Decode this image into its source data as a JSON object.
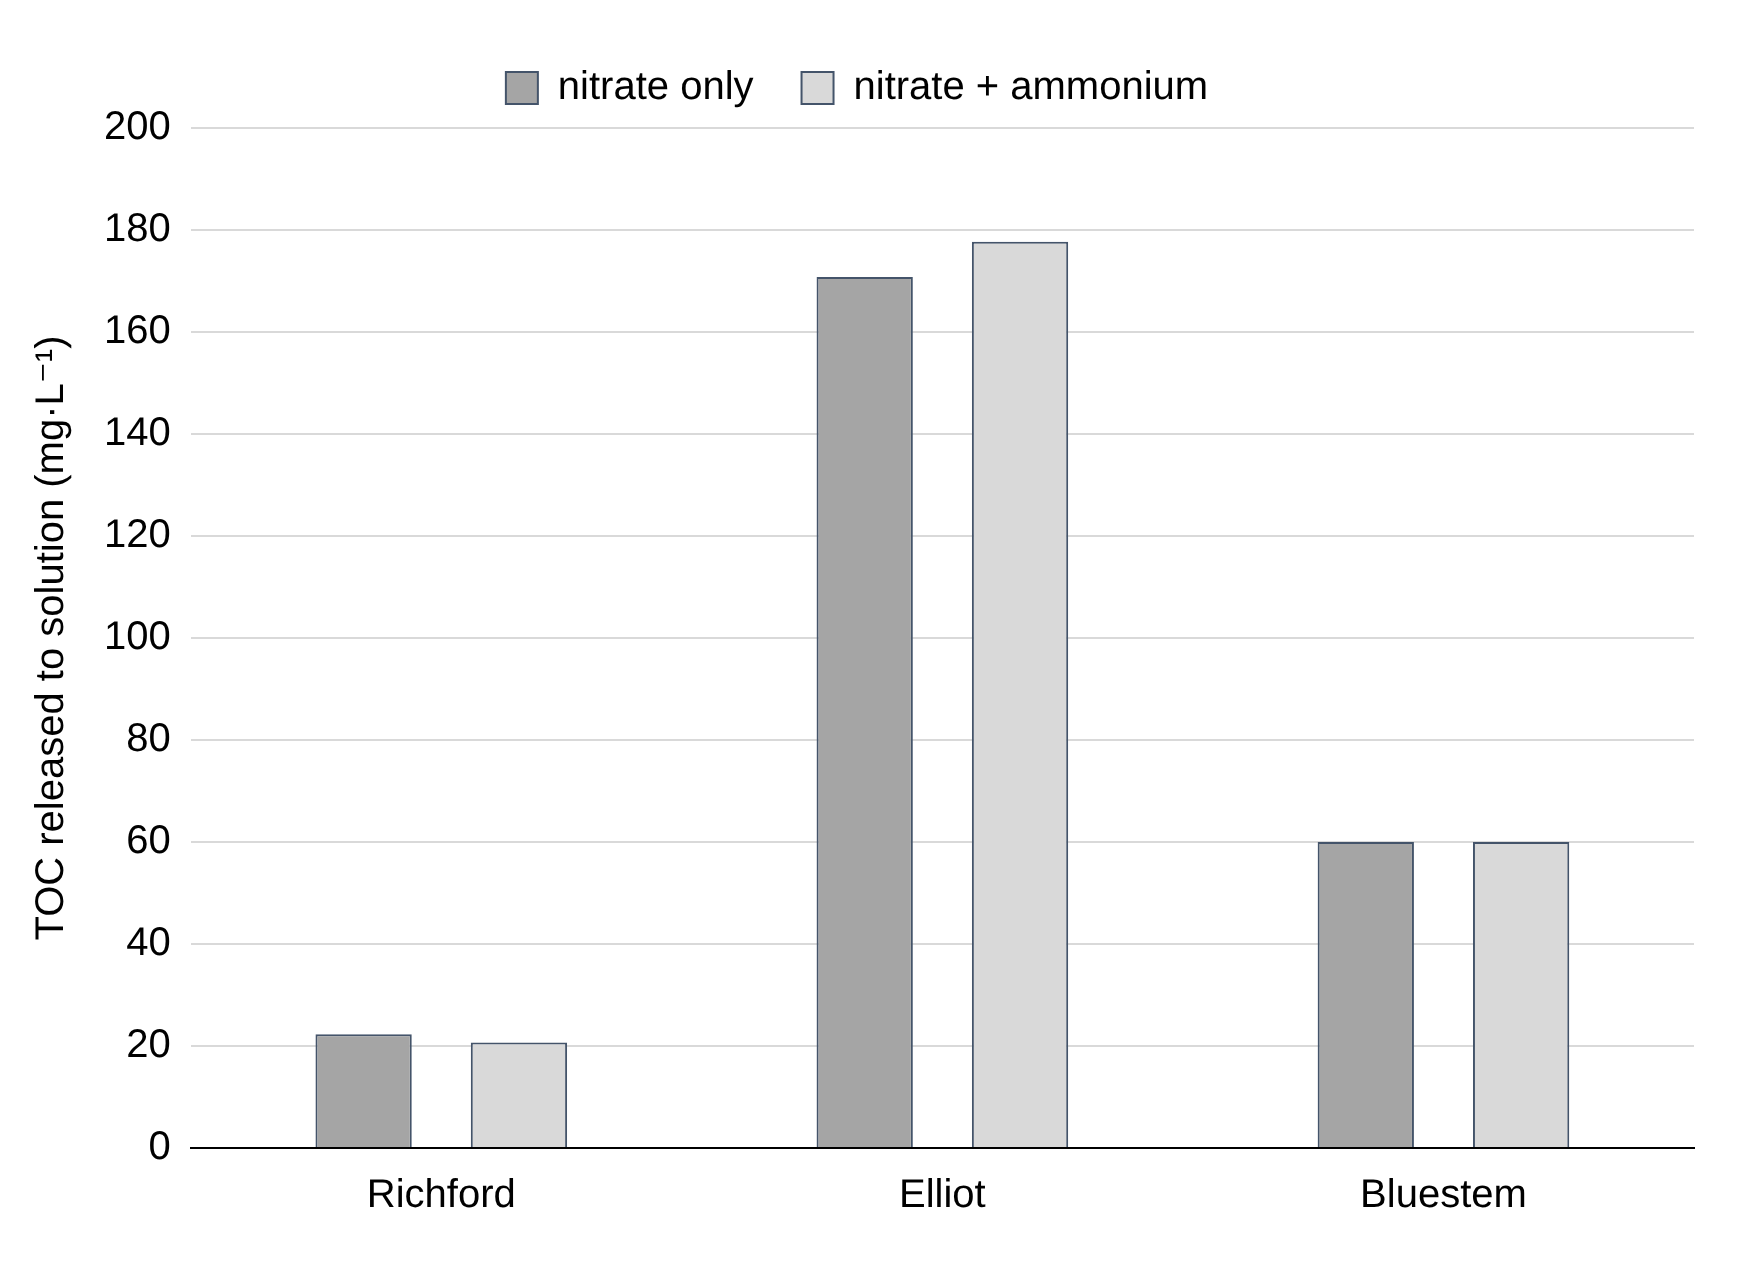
{
  "chart_data": {
    "type": "bar",
    "ylabel": "TOC released to solution (mg·L⁻¹)",
    "categories": [
      "Richford",
      "Elliot",
      "Bluestem"
    ],
    "series": [
      {
        "name": "nitrate only",
        "color": "#a5a5a5",
        "values": [
          22.3,
          170.8,
          60
        ]
      },
      {
        "name": "nitrate + ammonium",
        "color": "#d9d9d9",
        "values": [
          20.7,
          177.7,
          60
        ]
      }
    ],
    "ylim": [
      0,
      200
    ],
    "yticks": [
      0,
      20,
      40,
      60,
      80,
      100,
      120,
      140,
      160,
      180,
      200
    ],
    "grid": "y",
    "legend": "top"
  }
}
